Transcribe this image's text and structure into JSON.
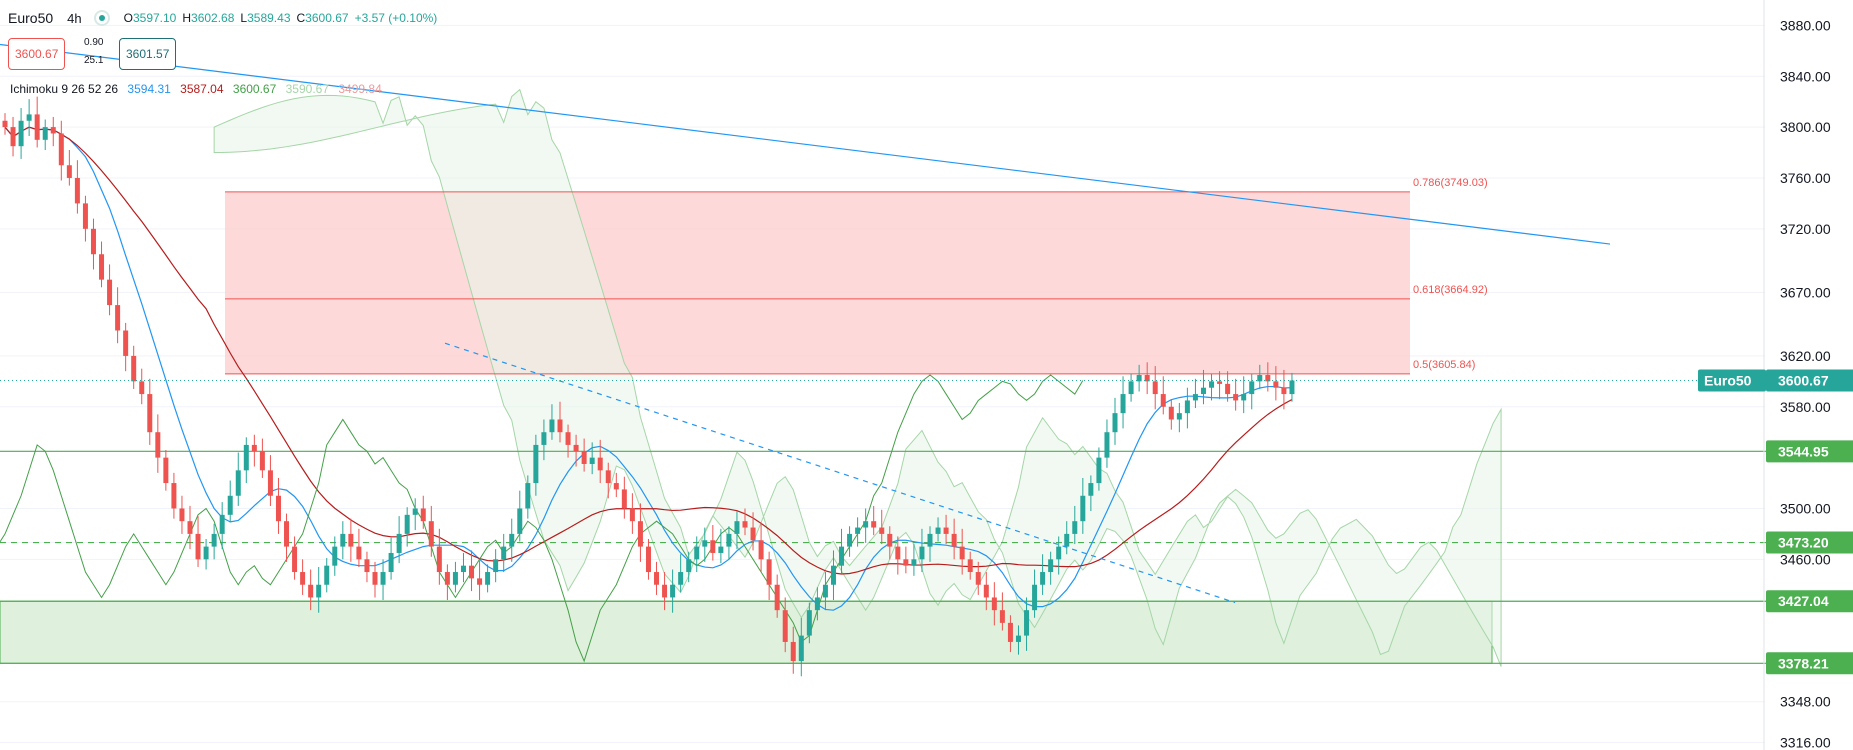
{
  "header": {
    "symbol": "Euro50",
    "timeframe": "4h",
    "open_label": "O",
    "open": "3597.10",
    "high_label": "H",
    "high": "3602.68",
    "low_label": "L",
    "low": "3589.43",
    "close_label": "C",
    "close": "3600.67",
    "change": "+3.57 (+0.10%)"
  },
  "quote": {
    "sell": "3600.67",
    "buy": "3601.57",
    "spread_top": "0.90",
    "spread_bottom": "25.1"
  },
  "indicator": {
    "name": "Ichimoku 9 26 52 26",
    "values": [
      "3594.31",
      "3587.04",
      "3600.67",
      "3590.67",
      "3499.84"
    ],
    "colors": [
      "#2196f3",
      "#b71c1c",
      "#43a047",
      "#a5d6a7",
      "#ef9a9a"
    ]
  },
  "colors": {
    "up": "#26a69a",
    "down": "#ef5350",
    "trendline": "#2196f3",
    "fib_zone": "#fcd0cf",
    "fib_line": "#ef5350",
    "support": "#4caf50",
    "support_zone": "#dff0dc",
    "price_label_bg": "#26a69a"
  },
  "chart_data": {
    "type": "candlestick",
    "y_axis": {
      "ticks": [
        "3880.00",
        "3840.00",
        "3800.00",
        "3760.00",
        "3720.00",
        "3670.00",
        "3620.00",
        "3580.00",
        "3544.95",
        "3500.00",
        "3473.20",
        "3460.00",
        "3427.04",
        "3378.21",
        "3348.00",
        "3316.00"
      ],
      "ylim": [
        3310,
        3900
      ]
    },
    "fib_levels": [
      {
        "label": "0.786(3749.03)",
        "value": 3749.03
      },
      {
        "label": "0.618(3664.92)",
        "value": 3664.92
      },
      {
        "label": "0.5(3605.84)",
        "value": 3605.84
      }
    ],
    "horizontal_levels": [
      {
        "label": "3544.95",
        "value": 3544.95,
        "style": "solid"
      },
      {
        "label": "3473.20",
        "value": 3473.2,
        "style": "dashed"
      },
      {
        "label": "3427.04",
        "value": 3427.04,
        "style": "solid"
      },
      {
        "label": "3378.21",
        "value": 3378.21,
        "style": "solid"
      }
    ],
    "last_price": {
      "symbol": "Euro50",
      "value": "3600.67"
    },
    "closes": [
      3800,
      3785,
      3805,
      3810,
      3790,
      3800,
      3795,
      3770,
      3760,
      3740,
      3720,
      3700,
      3680,
      3660,
      3640,
      3620,
      3600,
      3590,
      3560,
      3540,
      3520,
      3500,
      3490,
      3480,
      3460,
      3470,
      3480,
      3495,
      3510,
      3530,
      3550,
      3545,
      3530,
      3510,
      3490,
      3470,
      3450,
      3440,
      3430,
      3440,
      3455,
      3470,
      3480,
      3470,
      3460,
      3450,
      3440,
      3450,
      3465,
      3480,
      3495,
      3500,
      3490,
      3470,
      3450,
      3440,
      3450,
      3455,
      3445,
      3440,
      3450,
      3460,
      3470,
      3480,
      3500,
      3520,
      3550,
      3560,
      3570,
      3560,
      3550,
      3545,
      3535,
      3540,
      3530,
      3520,
      3515,
      3500,
      3490,
      3470,
      3450,
      3440,
      3430,
      3440,
      3450,
      3460,
      3470,
      3475,
      3465,
      3470,
      3480,
      3490,
      3485,
      3475,
      3460,
      3440,
      3420,
      3395,
      3380,
      3400,
      3420,
      3430,
      3440,
      3455,
      3470,
      3480,
      3485,
      3490,
      3485,
      3480,
      3470,
      3460,
      3455,
      3460,
      3470,
      3480,
      3485,
      3480,
      3470,
      3460,
      3450,
      3440,
      3430,
      3420,
      3410,
      3395,
      3400,
      3420,
      3440,
      3450,
      3460,
      3470,
      3480,
      3490,
      3510,
      3520,
      3540,
      3560,
      3575,
      3590,
      3600,
      3605,
      3600,
      3590,
      3580,
      3570,
      3575,
      3585,
      3590,
      3595,
      3600,
      3598,
      3590,
      3585,
      3590,
      3600,
      3605,
      3600,
      3595,
      3590,
      3600.67
    ]
  }
}
